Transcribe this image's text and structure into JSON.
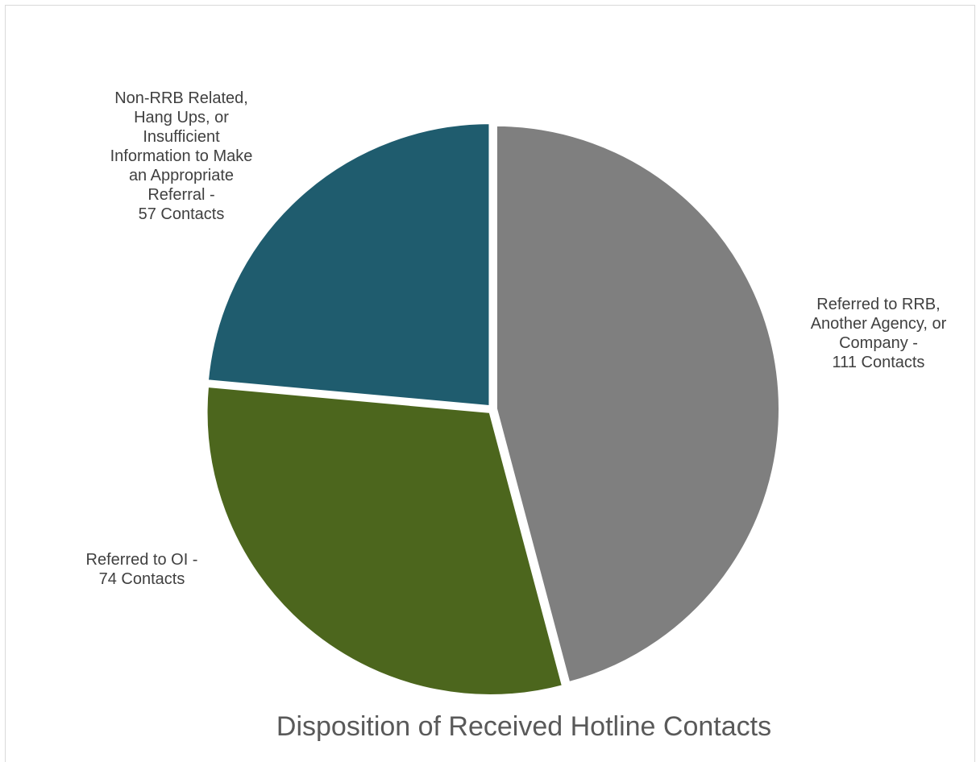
{
  "chart_data": {
    "type": "pie",
    "title": "Disposition of Received Hotline Contacts",
    "slices": [
      {
        "label": "Referred to RRB, Another Agency, or Company - 111 Contacts",
        "category": "Referred to RRB, Another Agency, or Company",
        "value": 111,
        "color": "#7f7f7f"
      },
      {
        "label": "Referred to OI - 74 Contacts",
        "category": "Referred to OI",
        "value": 74,
        "color": "#4c661d"
      },
      {
        "label": "Non-RRB Related, Hang Ups, or Insufficient Information to Make an Appropriate Referral - 57 Contacts",
        "category": "Non-RRB Related, Hang Ups, or Insufficient Information to Make an Appropriate Referral",
        "value": 57,
        "color": "#1f5c6e"
      }
    ],
    "legend": "none",
    "data_labels": "outside"
  },
  "labels": {
    "rrb": "Referred to RRB,\nAnother Agency, or\nCompany  -\n111 Contacts",
    "oi": "Referred to OI -\n74 Contacts",
    "non_rrb": "Non-RRB Related,\nHang Ups, or\nInsufficient\nInformation to Make\nan Appropriate\nReferral -\n57 Contacts"
  }
}
